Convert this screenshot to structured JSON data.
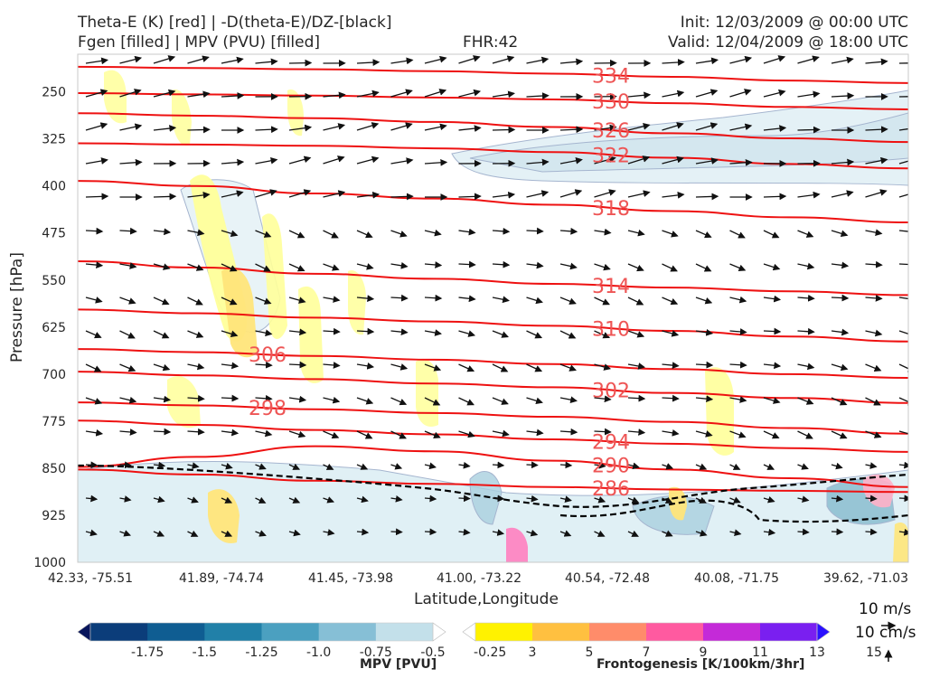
{
  "header": {
    "title_left_1": "Theta-E (K) [red] | -D(theta-E)/DZ-[black]",
    "title_left_2": "Fgen [filled] | MPV (PVU) [filled]",
    "fhr": "FHR:42",
    "init": "Init: 12/03/2009 @ 00:00 UTC",
    "valid": "Valid: 12/04/2009 @ 18:00 UTC"
  },
  "chart_data": {
    "type": "cross-section",
    "xlabel": "Latitude,Longitude",
    "ylabel": "Pressure [hPa]",
    "x_tick_labels": [
      "42.33, -75.51",
      "41.89, -74.74",
      "41.45, -73.98",
      "41.00, -73.22",
      "40.54, -72.48",
      "40.08, -71.75",
      "39.62, -71.03"
    ],
    "y_ticks": [
      250,
      325,
      400,
      475,
      550,
      625,
      700,
      775,
      850,
      925,
      1000
    ],
    "ylim": [
      1000,
      190
    ],
    "theta_e_lines": [
      {
        "level": 286,
        "p": [
          852,
          860,
          870,
          875,
          880,
          884,
          886,
          888
        ]
      },
      {
        "level": 290,
        "p": [
          848,
          832,
          815,
          823,
          838,
          852,
          866,
          880
        ]
      },
      {
        "level": 294,
        "p": [
          774,
          781,
          789,
          796,
          804,
          811,
          818,
          824
        ]
      },
      {
        "level": 298,
        "p": [
          745,
          750,
          756,
          762,
          768,
          776,
          786,
          795
        ]
      },
      {
        "level": 302,
        "p": [
          696,
          702,
          708,
          715,
          721,
          730,
          738,
          746
        ]
      },
      {
        "level": 306,
        "p": [
          660,
          665,
          671,
          677,
          684,
          692,
          700,
          706
        ]
      },
      {
        "level": 310,
        "p": [
          597,
          603,
          610,
          616,
          623,
          631,
          640,
          648
        ]
      },
      {
        "level": 314,
        "p": [
          520,
          530,
          540,
          548,
          556,
          562,
          568,
          574
        ]
      },
      {
        "level": 318,
        "p": [
          392,
          400,
          412,
          420,
          430,
          440,
          450,
          458
        ]
      },
      {
        "level": 322,
        "p": [
          332,
          334,
          336,
          340,
          346,
          355,
          365,
          372
        ]
      },
      {
        "level": 326,
        "p": [
          284,
          288,
          292,
          298,
          306,
          316,
          324,
          330
        ]
      },
      {
        "level": 330,
        "p": [
          252,
          254,
          256,
          259,
          262,
          268,
          274,
          278
        ]
      },
      {
        "level": 334,
        "p": [
          210,
          212,
          214,
          217,
          221,
          226,
          232,
          236
        ]
      }
    ],
    "mpv_colorbar": {
      "title": "MPV [PVU]",
      "labels": [
        "-1.75",
        "-1.5",
        "-1.25",
        "-1.0",
        "-0.75",
        "-0.5",
        "-0.25"
      ],
      "colors": [
        "#08155c",
        "#0b3d7a",
        "#0f5d92",
        "#2180a8",
        "#4ba0c0",
        "#86bfd6",
        "#c3e0ea",
        "#ffffff"
      ]
    },
    "fgen_colorbar": {
      "title": "Frontogenesis [K/100km/3hr]",
      "labels": [
        "3",
        "5",
        "7",
        "9",
        "11",
        "13",
        "15"
      ],
      "colors": [
        "#ffffff",
        "#fff200",
        "#ffc040",
        "#ff8c6a",
        "#ff5aa0",
        "#c42ad8",
        "#7a1ff0",
        "#2a10ff"
      ]
    },
    "wind_reference": {
      "horizontal": "10 m/s",
      "vertical": "10 cm/s"
    }
  }
}
